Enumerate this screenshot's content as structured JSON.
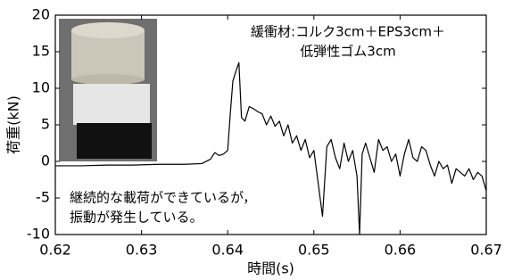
{
  "chart_data": {
    "type": "line",
    "xlabel": "時間(s)",
    "ylabel": "荷重(kN)",
    "annotations": [
      "緩衝材:コルク3cm＋EPS3cm＋",
      "低弾性ゴム3cm",
      "継続的な載荷ができているが，",
      "振動が発生している。"
    ],
    "color": "#000000",
    "xlim": [
      0.62,
      0.67
    ],
    "xticks": [
      0.62,
      0.63,
      0.64,
      0.65,
      0.66,
      0.67
    ],
    "ylim": [
      -10,
      20
    ],
    "yticks": [
      -10,
      -5,
      0,
      5,
      10,
      15,
      20
    ],
    "x": [
      0.62,
      0.623,
      0.626,
      0.629,
      0.632,
      0.635,
      0.637,
      0.638,
      0.6385,
      0.639,
      0.6395,
      0.64,
      0.6403,
      0.6406,
      0.641,
      0.6413,
      0.6416,
      0.642,
      0.6425,
      0.643,
      0.6435,
      0.644,
      0.6445,
      0.645,
      0.6455,
      0.646,
      0.6465,
      0.647,
      0.6475,
      0.648,
      0.6485,
      0.649,
      0.6495,
      0.65,
      0.6505,
      0.651,
      0.6515,
      0.652,
      0.6525,
      0.653,
      0.6535,
      0.654,
      0.6545,
      0.655,
      0.6553,
      0.6556,
      0.656,
      0.6565,
      0.657,
      0.6575,
      0.658,
      0.6585,
      0.659,
      0.6595,
      0.66,
      0.6605,
      0.661,
      0.6615,
      0.662,
      0.6625,
      0.663,
      0.6635,
      0.664,
      0.6645,
      0.665,
      0.6655,
      0.666,
      0.6665,
      0.667,
      0.6675,
      0.668,
      0.6685,
      0.669,
      0.6695,
      0.67
    ],
    "values": [
      -0.6,
      -0.6,
      -0.5,
      -0.5,
      -0.4,
      -0.4,
      -0.3,
      0.3,
      1.2,
      0.8,
      1.0,
      1.5,
      6.5,
      11.0,
      12.5,
      13.5,
      6.0,
      5.5,
      7.5,
      7.2,
      6.8,
      6.5,
      5.0,
      6.2,
      4.8,
      5.5,
      3.5,
      5.0,
      2.5,
      3.5,
      1.5,
      3.0,
      0.5,
      1.5,
      -3.0,
      -7.5,
      2.0,
      3.0,
      0.5,
      -1.0,
      2.5,
      0.0,
      1.5,
      -2.0,
      -10.0,
      1.0,
      2.5,
      0.5,
      -1.5,
      3.0,
      1.5,
      2.0,
      0.0,
      1.0,
      -2.0,
      1.0,
      3.0,
      0.5,
      0.0,
      2.0,
      1.5,
      -0.5,
      -2.0,
      0.0,
      -1.0,
      -0.5,
      -3.0,
      -1.0,
      -1.5,
      -2.0,
      -1.0,
      -2.5,
      -1.5,
      -2.0,
      -4.0
    ]
  }
}
